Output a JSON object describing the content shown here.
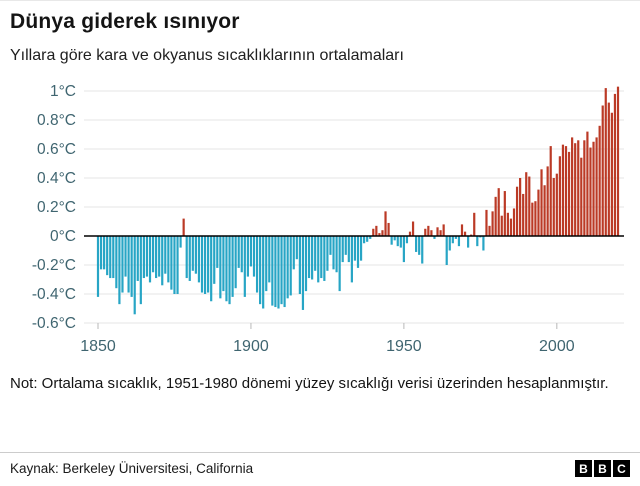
{
  "header": {
    "title": "Dünya giderek ısınıyor",
    "subtitle": "Yıllara göre kara ve okyanus sıcaklıklarının ortalamaları"
  },
  "chart_data": {
    "type": "bar",
    "title": "Dünya giderek ısınıyor",
    "subtitle": "Yıllara göre kara ve okyanus sıcaklıklarının ortalamaları",
    "xlabel": "",
    "ylabel": "",
    "unit": "°C",
    "baseline_note": "1951-1980",
    "year_start": 1850,
    "year_end": 2020,
    "values": [
      -0.42,
      -0.23,
      -0.23,
      -0.27,
      -0.29,
      -0.29,
      -0.36,
      -0.47,
      -0.39,
      -0.28,
      -0.39,
      -0.42,
      -0.54,
      -0.31,
      -0.47,
      -0.29,
      -0.28,
      -0.32,
      -0.25,
      -0.29,
      -0.28,
      -0.34,
      -0.26,
      -0.32,
      -0.37,
      -0.4,
      -0.4,
      -0.08,
      0.12,
      -0.29,
      -0.31,
      -0.24,
      -0.26,
      -0.32,
      -0.39,
      -0.4,
      -0.39,
      -0.45,
      -0.33,
      -0.22,
      -0.43,
      -0.38,
      -0.45,
      -0.47,
      -0.42,
      -0.36,
      -0.22,
      -0.25,
      -0.42,
      -0.28,
      -0.21,
      -0.28,
      -0.39,
      -0.47,
      -0.5,
      -0.38,
      -0.32,
      -0.48,
      -0.49,
      -0.5,
      -0.47,
      -0.49,
      -0.43,
      -0.41,
      -0.23,
      -0.16,
      -0.4,
      -0.51,
      -0.38,
      -0.29,
      -0.3,
      -0.24,
      -0.32,
      -0.29,
      -0.31,
      -0.24,
      -0.13,
      -0.23,
      -0.25,
      -0.38,
      -0.18,
      -0.13,
      -0.18,
      -0.32,
      -0.17,
      -0.22,
      -0.17,
      -0.05,
      -0.04,
      -0.02,
      0.05,
      0.07,
      0.02,
      0.04,
      0.17,
      0.09,
      -0.06,
      -0.03,
      -0.07,
      -0.08,
      -0.18,
      -0.05,
      0.03,
      0.1,
      -0.11,
      -0.13,
      -0.19,
      0.05,
      0.07,
      0.04,
      -0.02,
      0.06,
      0.04,
      0.08,
      -0.2,
      -0.1,
      -0.05,
      -0.02,
      -0.07,
      0.08,
      0.03,
      -0.08,
      0.01,
      0.16,
      -0.07,
      -0.01,
      -0.1,
      0.18,
      0.07,
      0.17,
      0.27,
      0.33,
      0.14,
      0.31,
      0.16,
      0.12,
      0.19,
      0.34,
      0.4,
      0.29,
      0.44,
      0.41,
      0.23,
      0.24,
      0.32,
      0.46,
      0.35,
      0.48,
      0.62,
      0.4,
      0.43,
      0.55,
      0.63,
      0.62,
      0.58,
      0.68,
      0.64,
      0.66,
      0.54,
      0.66,
      0.72,
      0.61,
      0.65,
      0.68,
      0.76,
      0.9,
      1.02,
      0.92,
      0.85,
      0.98,
      1.03
    ],
    "yticks": [
      {
        "label": "1°C",
        "value": 1.0
      },
      {
        "label": "0.8°C",
        "value": 0.8
      },
      {
        "label": "0.6°C",
        "value": 0.6
      },
      {
        "label": "0.4°C",
        "value": 0.4
      },
      {
        "label": "0.2°C",
        "value": 0.2
      },
      {
        "label": "0°C",
        "value": 0.0
      },
      {
        "label": "-0.2°C",
        "value": -0.2
      },
      {
        "label": "-0.4°C",
        "value": -0.4
      },
      {
        "label": "-0.6°C",
        "value": -0.6
      }
    ],
    "xticks": [
      {
        "label": "1850",
        "year": 1850
      },
      {
        "label": "1900",
        "year": 1900
      },
      {
        "label": "1950",
        "year": 1950
      },
      {
        "label": "2000",
        "year": 2000
      }
    ],
    "ylim": [
      -0.65,
      1.1
    ],
    "grid": true,
    "legend": "none",
    "pos_color": "#bb3a26",
    "neg_color": "#27a5c5",
    "grid_color": "#e4e4e4",
    "zero_line_color": "#000000",
    "axis_label_color": "#3f6570"
  },
  "note": {
    "text": "Not: Ortalama sıcaklık, 1951-1980 dönemi yüzey sıcaklığı verisi üzerinden hesaplanmıştır."
  },
  "footer": {
    "source": "Kaynak: Berkeley Üniversitesi, California",
    "logo": [
      "B",
      "B",
      "C"
    ]
  }
}
